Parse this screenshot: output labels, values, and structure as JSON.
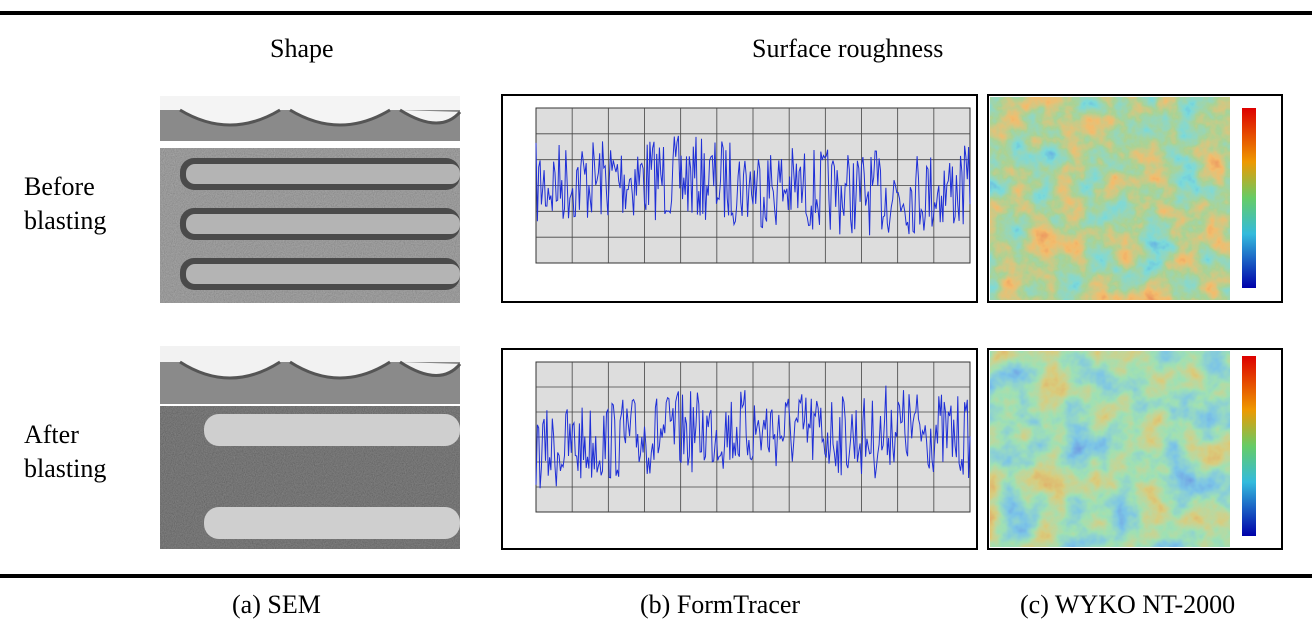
{
  "header": {
    "shape": "Shape",
    "surface": "Surface roughness"
  },
  "rows": [
    {
      "label": "Before blasting"
    },
    {
      "label": "After blasting"
    }
  ],
  "captions": [
    "(a) SEM",
    "(b) FormTracer",
    "(c) WYKO NT-2000"
  ]
}
